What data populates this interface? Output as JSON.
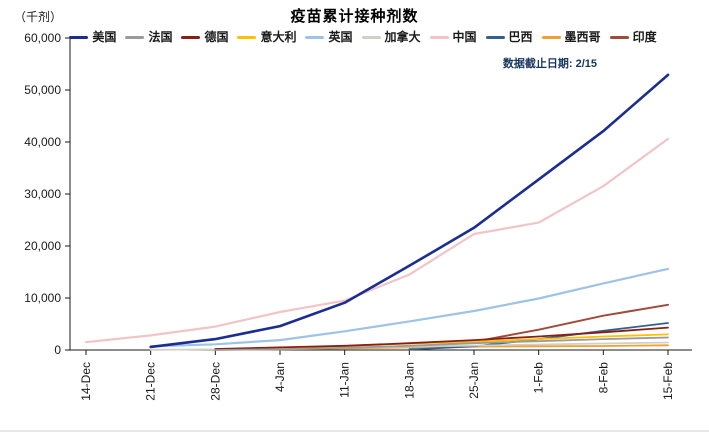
{
  "chart_data": {
    "type": "line",
    "title": "疫苗累计接种剂数",
    "unit_label": "（千剂）",
    "note": "数据截止日期: 2/15",
    "note_color": "#17365d",
    "xlabel": "",
    "ylabel": "千剂",
    "ylim": [
      0,
      60000
    ],
    "y_tick_labels": [
      "0",
      "10,000",
      "20,000",
      "30,000",
      "40,000",
      "50,000",
      "60,000"
    ],
    "grid": false,
    "legend_position": "top",
    "axis_color": "#1a1a1a",
    "text_color": "#1a1a1a",
    "categories": [
      "14-Dec",
      "21-Dec",
      "28-Dec",
      "4-Jan",
      "11-Jan",
      "18-Jan",
      "25-Jan",
      "1-Feb",
      "8-Feb",
      "15-Feb"
    ],
    "series": [
      {
        "id": "usa",
        "name": "美国",
        "color": "#1b2d90",
        "line_width": 2.6,
        "values": [
          null,
          600,
          2100,
          4600,
          9100,
          16200,
          23500,
          32800,
          42100,
          52900
        ]
      },
      {
        "id": "france",
        "name": "法国",
        "color": "#9b9b9b",
        "line_width": 1.8,
        "values": [
          null,
          null,
          0,
          150,
          400,
          800,
          1300,
          1700,
          2100,
          2400
        ]
      },
      {
        "id": "germany",
        "name": "德国",
        "color": "#8a1e16",
        "line_width": 1.8,
        "values": [
          null,
          null,
          200,
          500,
          800,
          1300,
          1900,
          2600,
          3400,
          4300
        ]
      },
      {
        "id": "italy",
        "name": "意大利",
        "color": "#ffc000",
        "line_width": 1.8,
        "values": [
          null,
          null,
          100,
          350,
          750,
          1250,
          1600,
          2100,
          2600,
          3000
        ]
      },
      {
        "id": "uk",
        "name": "英国",
        "color": "#9dc3e6",
        "line_width": 2.2,
        "values": [
          null,
          700,
          1100,
          1900,
          3600,
          5500,
          7500,
          9900,
          12800,
          15600
        ]
      },
      {
        "id": "canada",
        "name": "加拿大",
        "color": "#d2cfc4",
        "line_width": 1.8,
        "values": [
          null,
          30,
          120,
          300,
          450,
          650,
          850,
          1050,
          1250,
          1450
        ]
      },
      {
        "id": "china",
        "name": "中国",
        "color": "#f2c4c6",
        "line_width": 2.2,
        "values": [
          1500,
          2800,
          4500,
          7300,
          9500,
          14500,
          22300,
          24500,
          31500,
          40600
        ]
      },
      {
        "id": "brazil",
        "name": "巴西",
        "color": "#33618f",
        "line_width": 1.8,
        "values": [
          null,
          null,
          null,
          null,
          null,
          100,
          700,
          2100,
          3700,
          5200
        ]
      },
      {
        "id": "mexico",
        "name": "墨西哥",
        "color": "#f0a030",
        "line_width": 1.8,
        "values": [
          null,
          null,
          50,
          120,
          300,
          480,
          650,
          720,
          760,
          900
        ]
      },
      {
        "id": "india",
        "name": "印度",
        "color": "#a04a38",
        "line_width": 2.0,
        "values": [
          null,
          null,
          null,
          null,
          null,
          450,
          1600,
          3900,
          6600,
          8700
        ]
      }
    ]
  }
}
